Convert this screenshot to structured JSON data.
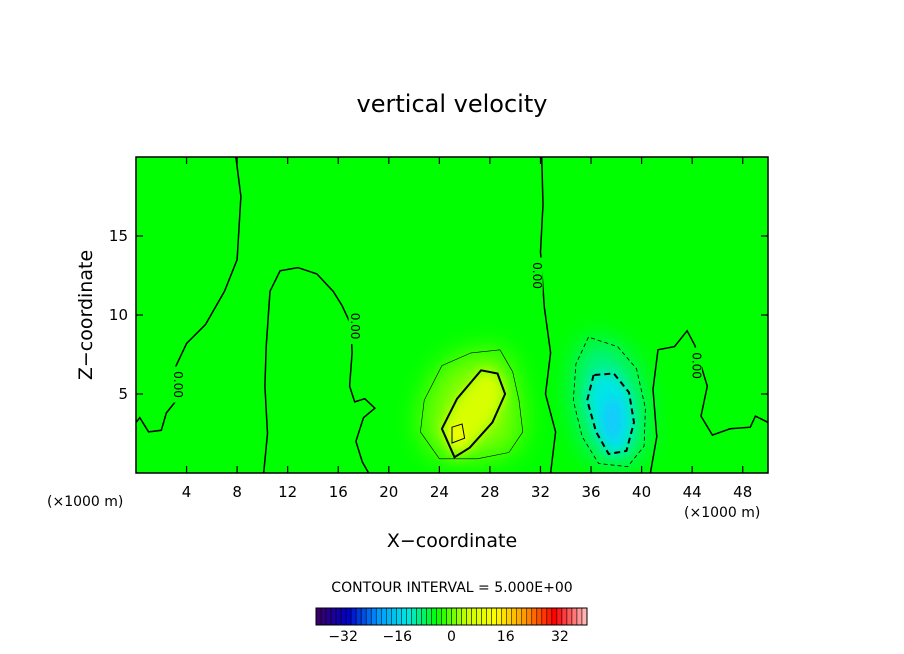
{
  "chart_data": {
    "type": "heatmap",
    "title": "vertical velocity",
    "xlabel": "X−coordinate",
    "ylabel": "Z−coordinate",
    "x_unit_left": "(×1000 m)",
    "x_unit_right": "(×1000 m)",
    "xlim": [
      0,
      50
    ],
    "ylim": [
      0,
      20
    ],
    "x_ticks": [
      4,
      8,
      12,
      16,
      20,
      24,
      28,
      32,
      36,
      40,
      44,
      48
    ],
    "x_tick_labels": [
      "4",
      "8",
      "12",
      "16",
      "20",
      "24",
      "28",
      "32",
      "36",
      "40",
      "44",
      "48"
    ],
    "y_ticks": [
      5,
      10,
      15
    ],
    "y_tick_labels": [
      "5",
      "10",
      "15"
    ],
    "contour_interval_text": "CONTOUR INTERVAL = 5.000E+00",
    "contour_label": "0.00",
    "contour_label_positions": [
      [
        3.3,
        5.6
      ],
      [
        17.3,
        9.3
      ],
      [
        31.7,
        12.5
      ],
      [
        44.3,
        6.8
      ]
    ],
    "colorbar": {
      "range": [
        -40,
        40
      ],
      "ticks": [
        -32,
        -16,
        0,
        16,
        32
      ],
      "tick_labels": [
        "−32",
        "−16",
        "0",
        "16",
        "32"
      ],
      "stops": [
        "#3a006a",
        "#0000c8",
        "#0096ff",
        "#00e6e6",
        "#00ff00",
        "#c8ff00",
        "#ffff00",
        "#ff9600",
        "#ff0000",
        "#ffb4b4"
      ]
    },
    "field_features": [
      {
        "name": "updraft",
        "center": [
          27.5,
          4.5
        ],
        "peak": 11,
        "color": "#ffff00"
      },
      {
        "name": "downdraft",
        "center": [
          37.7,
          3.4
        ],
        "peak": -15,
        "color": "#19c8ff"
      }
    ],
    "contours": {
      "zero": [
        [
          [
            7.9,
            20
          ],
          [
            8.3,
            17.5
          ],
          [
            8.0,
            13.5
          ],
          [
            7.0,
            11.5
          ],
          [
            5.5,
            9.4
          ],
          [
            4.0,
            8.2
          ],
          [
            3.0,
            6.5
          ],
          [
            3.6,
            5.0
          ],
          [
            2.4,
            3.8
          ],
          [
            2.0,
            2.7
          ],
          [
            1.0,
            2.6
          ],
          [
            0.3,
            3.5
          ],
          [
            0.0,
            3.2
          ]
        ],
        [
          [
            10.1,
            0
          ],
          [
            10.4,
            2.5
          ],
          [
            10.2,
            5.5
          ],
          [
            10.3,
            8.0
          ],
          [
            10.6,
            11.5
          ],
          [
            11.4,
            12.8
          ],
          [
            12.8,
            13.0
          ],
          [
            14.3,
            12.6
          ],
          [
            15.6,
            11.5
          ],
          [
            16.3,
            10.6
          ],
          [
            17.0,
            9.4
          ],
          [
            17.1,
            7.6
          ],
          [
            16.9,
            5.5
          ],
          [
            17.3,
            4.5
          ],
          [
            18.1,
            4.7
          ],
          [
            18.9,
            4.1
          ],
          [
            18.0,
            3.5
          ],
          [
            17.4,
            2.0
          ],
          [
            17.9,
            0.7
          ],
          [
            18.4,
            0
          ]
        ],
        [
          [
            32.1,
            20
          ],
          [
            32.2,
            17.0
          ],
          [
            32.0,
            14.0
          ],
          [
            32.3,
            10.5
          ],
          [
            32.8,
            7.6
          ],
          [
            32.4,
            5.0
          ],
          [
            33.2,
            2.6
          ],
          [
            32.8,
            0
          ]
        ],
        [
          [
            40.7,
            0
          ],
          [
            41.2,
            2.3
          ],
          [
            40.9,
            5.3
          ],
          [
            41.3,
            7.8
          ],
          [
            42.6,
            8.0
          ],
          [
            43.6,
            9.0
          ],
          [
            44.2,
            8.1
          ],
          [
            45.2,
            5.5
          ],
          [
            44.7,
            3.6
          ],
          [
            45.6,
            2.4
          ],
          [
            47.0,
            2.8
          ],
          [
            48.6,
            2.9
          ],
          [
            49.0,
            3.6
          ],
          [
            50,
            3.2
          ]
        ]
      ],
      "positive": [
        [
          [
            25.2,
            1.0
          ],
          [
            24.2,
            2.8
          ],
          [
            25.4,
            4.7
          ],
          [
            27.3,
            6.5
          ],
          [
            28.6,
            6.3
          ],
          [
            29.2,
            5.0
          ],
          [
            28.2,
            3.2
          ],
          [
            26.4,
            1.6
          ],
          [
            25.2,
            1.0
          ]
        ],
        [
          [
            25.0,
            1.9
          ],
          [
            25.0,
            2.9
          ],
          [
            25.8,
            3.1
          ],
          [
            26.0,
            2.2
          ],
          [
            25.0,
            1.9
          ]
        ],
        [
          [
            24.0,
            0.9
          ],
          [
            22.5,
            2.6
          ],
          [
            22.8,
            4.6
          ],
          [
            24.2,
            6.8
          ],
          [
            26.5,
            7.6
          ],
          [
            28.8,
            7.8
          ],
          [
            29.8,
            6.4
          ],
          [
            30.3,
            4.6
          ],
          [
            30.6,
            2.6
          ],
          [
            29.5,
            1.3
          ],
          [
            27.0,
            0.9
          ],
          [
            24.0,
            0.9
          ]
        ]
      ],
      "negative": [
        [
          [
            36.2,
            6.2
          ],
          [
            35.7,
            4.6
          ],
          [
            36.4,
            2.6
          ],
          [
            37.4,
            1.2
          ],
          [
            38.8,
            1.4
          ],
          [
            39.4,
            3.2
          ],
          [
            39.0,
            5.1
          ],
          [
            37.8,
            6.3
          ],
          [
            36.2,
            6.2
          ]
        ],
        [
          [
            35.8,
            8.6
          ],
          [
            34.8,
            6.9
          ],
          [
            34.6,
            4.6
          ],
          [
            35.3,
            2.3
          ],
          [
            36.6,
            0.6
          ],
          [
            38.9,
            0.4
          ],
          [
            40.2,
            1.7
          ],
          [
            40.3,
            4.1
          ],
          [
            39.6,
            6.6
          ],
          [
            38.1,
            8.0
          ],
          [
            35.8,
            8.6
          ]
        ]
      ]
    }
  }
}
